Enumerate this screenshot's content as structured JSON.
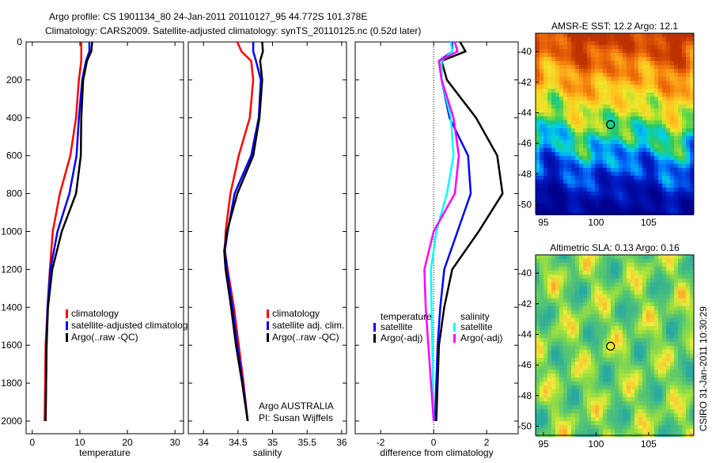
{
  "title_line1": "Argo profile: CS 1901134_80 24-Jan-2011 20110127_95 44.772S 101.378E",
  "title_line2": "Climatology: CARS2009. Satellite-adjusted climatology: synTS_20110125.nc (0.52d later)",
  "footer_vertical": "CSIRO 31-Jan-2011 10:30:29",
  "chart_data": [
    {
      "type": "line",
      "id": "temperature",
      "xlabel": "temperature",
      "xlim": [
        -1.3,
        31.8
      ],
      "ylim": [
        0,
        2067
      ],
      "y_reversed": true,
      "xticks": [
        0,
        10,
        20,
        30
      ],
      "yticks": [
        0,
        200,
        400,
        600,
        800,
        1000,
        1200,
        1400,
        1600,
        1800,
        2000
      ],
      "depth": [
        0,
        50,
        100,
        200,
        400,
        600,
        800,
        1000,
        1200,
        1400,
        1600,
        2000
      ],
      "series": [
        {
          "name": "climatology",
          "color": "#ff0000",
          "values": [
            10.3,
            10.3,
            10.3,
            9.8,
            9.2,
            8.0,
            5.8,
            4.3,
            3.7,
            3.2,
            2.8,
            2.6
          ]
        },
        {
          "name": "satellite-adjusted climatology",
          "color": "#0000ff",
          "values": [
            12.0,
            12.0,
            11.3,
            10.5,
            9.8,
            9.3,
            7.8,
            5.3,
            3.8,
            3.2,
            3.0,
            2.8
          ]
        },
        {
          "name": "Argo(..raw -QC)",
          "color": "#000000",
          "values": [
            12.6,
            12.4,
            11.5,
            10.7,
            10.3,
            10.2,
            9.2,
            6.2,
            4.2,
            3.3,
            3.0,
            2.8
          ]
        }
      ],
      "notes": []
    },
    {
      "type": "line",
      "id": "salinity",
      "xlabel": "salinity",
      "xlim": [
        33.78,
        36.07
      ],
      "ylim": [
        0,
        2067
      ],
      "y_reversed": true,
      "xticks": [
        34,
        34.5,
        35,
        35.5,
        36
      ],
      "yticks": [
        0,
        200,
        400,
        600,
        800,
        1000,
        1200,
        1400,
        1600,
        1800,
        2000
      ],
      "depth": [
        0,
        50,
        100,
        200,
        400,
        600,
        800,
        1000,
        1100,
        1200,
        1400,
        1600,
        1800,
        2000
      ],
      "series": [
        {
          "name": "climatology",
          "color": "#ff0000",
          "values": [
            34.49,
            34.55,
            34.69,
            34.72,
            34.67,
            34.51,
            34.39,
            34.32,
            34.31,
            34.35,
            34.44,
            34.51,
            34.58,
            34.64
          ]
        },
        {
          "name": "satellite adj. clim.",
          "color": "#0000ff",
          "values": [
            34.72,
            34.72,
            34.76,
            34.83,
            34.8,
            34.69,
            34.45,
            34.35,
            34.31,
            34.34,
            34.42,
            34.49,
            34.57,
            34.64
          ]
        },
        {
          "name": "Argo(..raw -QC)",
          "color": "#000000",
          "values": [
            34.85,
            34.86,
            34.82,
            34.85,
            34.81,
            34.72,
            34.49,
            34.34,
            34.3,
            34.32,
            34.4,
            34.47,
            34.56,
            34.64
          ]
        }
      ],
      "notes": [
        "Argo AUSTRALIA",
        "PI: Susan Wijffels"
      ]
    },
    {
      "type": "line",
      "id": "difference",
      "xlabel": "difference from climatology",
      "xlim": [
        -2.96,
        3.19
      ],
      "ylim": [
        0,
        2067
      ],
      "y_reversed": true,
      "xticks": [
        -2,
        0,
        2
      ],
      "yticks": [
        0,
        200,
        400,
        600,
        800,
        1000,
        1200,
        1400,
        1600,
        1800,
        2000
      ],
      "depth": [
        0,
        50,
        100,
        200,
        400,
        600,
        800,
        1000,
        1200,
        1400,
        1600,
        2000
      ],
      "legend_headers": [
        "temperature",
        "salinity"
      ],
      "series": [
        {
          "name": "satellite",
          "group": "temperature",
          "color": "#0000ff",
          "values": [
            0.7,
            0.7,
            0.2,
            0.3,
            0.6,
            1.3,
            1.4,
            0.9,
            0.4,
            0.25,
            0.15,
            0.05
          ]
        },
        {
          "name": "Argo(-adj)",
          "group": "temperature",
          "color": "#000000",
          "values": [
            1.0,
            1.2,
            0.3,
            0.5,
            1.6,
            2.4,
            2.6,
            1.7,
            0.7,
            0.4,
            0.2,
            0.1
          ]
        },
        {
          "name": "satellite",
          "group": "salinity",
          "color": "#00ffff",
          "values": [
            0.65,
            0.7,
            0.3,
            0.3,
            0.65,
            0.75,
            0.5,
            0.1,
            -0.1,
            -0.08,
            -0.05,
            0.0
          ]
        },
        {
          "name": "Argo(-adj)",
          "group": "salinity",
          "color": "#ff00ff",
          "values": [
            0.8,
            0.9,
            0.2,
            0.3,
            0.75,
            0.95,
            0.8,
            0.0,
            -0.35,
            -0.3,
            -0.2,
            0.0
          ]
        }
      ],
      "notes": []
    }
  ],
  "maps": [
    {
      "id": "sst",
      "title": "AMSR-E SST: 12.2 Argo: 12.1",
      "lon_range": [
        94.25,
        109.3
      ],
      "lat_range": [
        -50.6,
        -38.8
      ],
      "lon_ticks": [
        95,
        100,
        105
      ],
      "lat_ticks": [
        -40,
        -42,
        -44,
        -46,
        -48,
        -50
      ],
      "marker": [
        101.378,
        -44.772
      ],
      "scheme": "sst"
    },
    {
      "id": "sla",
      "title": "Altimetric SLA: 0.13 Argo: 0.16",
      "lon_range": [
        94.25,
        109.3
      ],
      "lat_range": [
        -50.6,
        -38.8
      ],
      "lon_ticks": [
        95,
        100,
        105
      ],
      "lat_ticks": [
        -40,
        -42,
        -44,
        -46,
        -48,
        -50
      ],
      "marker": [
        101.378,
        -44.772
      ],
      "scheme": "sla"
    }
  ]
}
